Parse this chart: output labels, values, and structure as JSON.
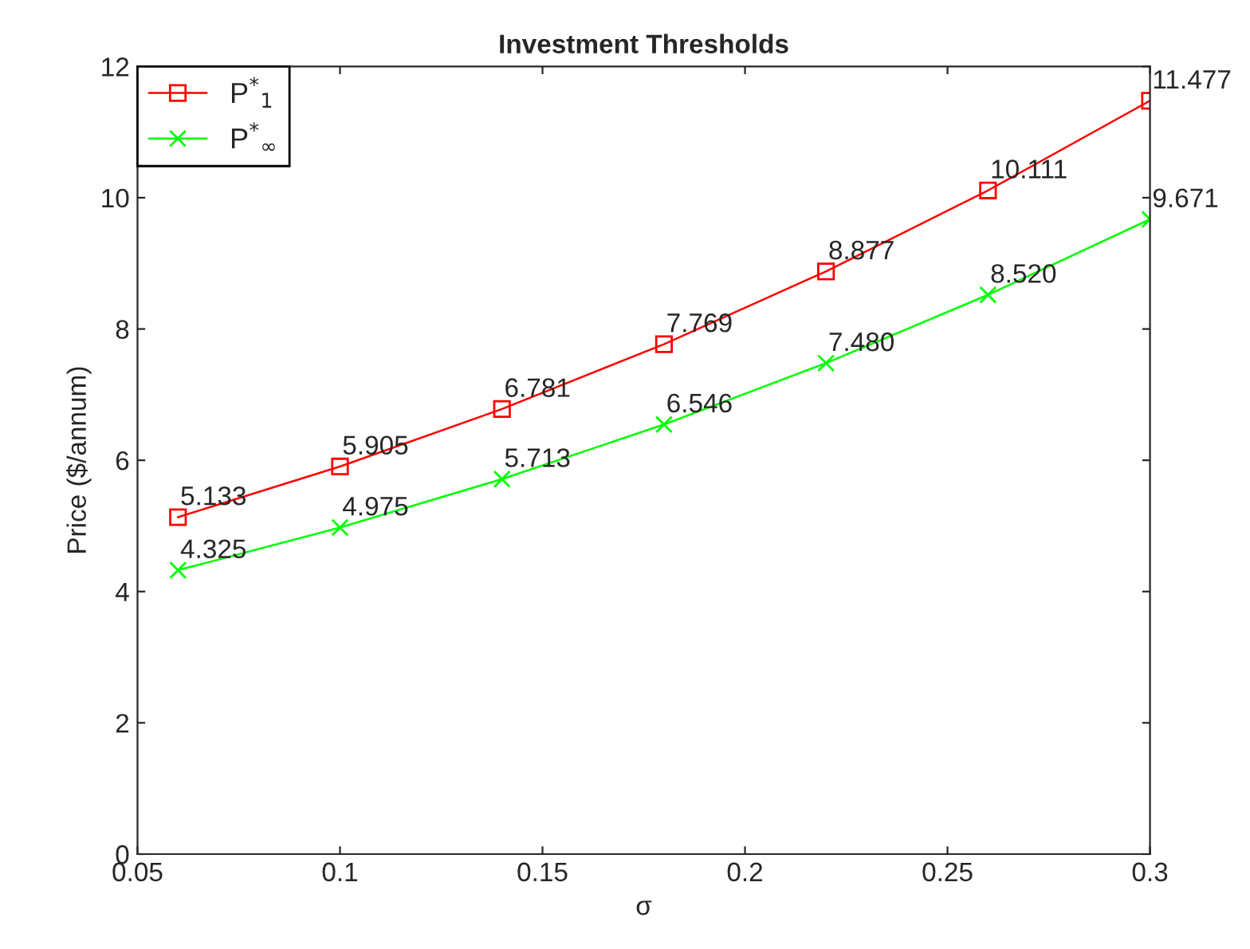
{
  "chart_data": {
    "type": "line",
    "title": "Investment Thresholds",
    "xlabel": "σ",
    "ylabel": "Price ($/annum)",
    "x": [
      0.06,
      0.1,
      0.14,
      0.18,
      0.22,
      0.26,
      0.3
    ],
    "series": [
      {
        "name": "P$^{*}$$_{1}$",
        "color": "#ff0000",
        "marker": "square",
        "values": [
          5.133,
          5.905,
          6.781,
          7.769,
          8.877,
          10.111,
          11.477
        ],
        "value_labels": [
          "5.133",
          "5.905",
          "6.781",
          "7.769",
          "8.877",
          "10.111",
          "11.477"
        ]
      },
      {
        "name": "P$^{*}$$_{∞}$",
        "color": "#00ff00",
        "marker": "cross",
        "values": [
          4.325,
          4.975,
          5.713,
          6.546,
          7.48,
          8.52,
          9.671
        ],
        "value_labels": [
          "4.325",
          "4.975",
          "5.713",
          "6.546",
          "7.480",
          "8.520",
          "9.671"
        ]
      }
    ],
    "xlim": [
      0.05,
      0.3
    ],
    "xticks": [
      0.05,
      0.1,
      0.15,
      0.2,
      0.25,
      0.3
    ],
    "ylim": [
      0,
      12
    ],
    "yticks": [
      0,
      2,
      4,
      6,
      8,
      10,
      12
    ],
    "grid": false,
    "legend": "top left",
    "line_style": "solid"
  }
}
